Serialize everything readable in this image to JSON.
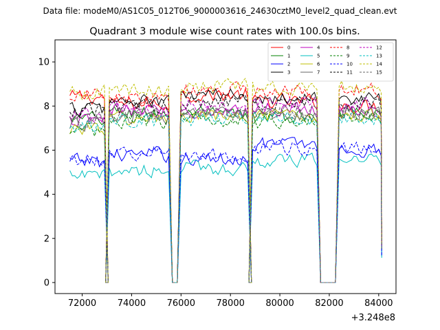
{
  "suptitle": "Data file: modeM0/AS1C05_012T06_9000003616_24630cztM0_level2_quad_clean.evt",
  "chart_data": {
    "type": "line",
    "title": "Quadrant 3 module wise count rates with 100.0s bins.",
    "xlabel": "",
    "ylabel": "",
    "x_offset_label": "+3.248e8",
    "xlim": [
      70900,
      84700
    ],
    "ylim": [
      -0.5,
      11
    ],
    "xticks": [
      72000,
      74000,
      76000,
      78000,
      80000,
      82000,
      84000
    ],
    "xtick_labels": [
      "72000",
      "74000",
      "76000",
      "78000",
      "80000",
      "82000",
      "84000"
    ],
    "yticks": [
      0,
      2,
      4,
      6,
      8,
      10
    ],
    "ytick_labels": [
      "0",
      "2",
      "4",
      "6",
      "8",
      "10"
    ],
    "legend_position": "top-right",
    "segments": [
      {
        "start": 71500,
        "end": 72900
      },
      {
        "start": 73100,
        "end": 75500
      },
      {
        "start": 76000,
        "end": 78700
      },
      {
        "start": 78900,
        "end": 81500
      },
      {
        "start": 82400,
        "end": 84100
      }
    ],
    "gap_value": 0,
    "series": [
      {
        "name": "0",
        "color": "#ff0000",
        "dash": "solid",
        "levels": [
          8.4,
          8.1,
          8.5,
          8.2,
          8.0
        ]
      },
      {
        "name": "1",
        "color": "#008000",
        "dash": "solid",
        "levels": [
          7.4,
          7.7,
          7.6,
          7.5,
          7.8
        ]
      },
      {
        "name": "2",
        "color": "#0000ff",
        "dash": "solid",
        "levels": [
          5.5,
          5.8,
          5.6,
          6.3,
          6.0
        ]
      },
      {
        "name": "3",
        "color": "#000000",
        "dash": "solid",
        "levels": [
          7.9,
          8.2,
          8.5,
          8.4,
          8.3
        ]
      },
      {
        "name": "4",
        "color": "#bf00bf",
        "dash": "solid",
        "levels": [
          7.3,
          7.8,
          7.8,
          7.9,
          7.8
        ]
      },
      {
        "name": "5",
        "color": "#00bfbf",
        "dash": "solid",
        "levels": [
          4.8,
          5.1,
          5.2,
          5.5,
          5.6
        ]
      },
      {
        "name": "6",
        "color": "#bfbf00",
        "dash": "solid",
        "levels": [
          7.0,
          7.4,
          7.5,
          7.5,
          7.6
        ]
      },
      {
        "name": "7",
        "color": "#666666",
        "dash": "solid",
        "levels": [
          7.2,
          7.5,
          7.6,
          7.6,
          7.7
        ]
      },
      {
        "name": "8",
        "color": "#ff0000",
        "dash": "dashed",
        "levels": [
          8.5,
          8.3,
          8.7,
          8.6,
          8.7
        ]
      },
      {
        "name": "9",
        "color": "#008000",
        "dash": "dashed",
        "levels": [
          6.9,
          7.3,
          7.4,
          7.3,
          7.5
        ]
      },
      {
        "name": "10",
        "color": "#0000ff",
        "dash": "dashed",
        "levels": [
          5.6,
          5.9,
          5.8,
          6.1,
          6.1
        ]
      },
      {
        "name": "11",
        "color": "#000000",
        "dash": "dashed",
        "levels": [
          7.8,
          8.0,
          8.2,
          8.2,
          8.1
        ]
      },
      {
        "name": "12",
        "color": "#bf00bf",
        "dash": "dashed",
        "levels": [
          7.5,
          7.9,
          8.0,
          8.1,
          8.0
        ]
      },
      {
        "name": "13",
        "color": "#00bfbf",
        "dash": "dashed",
        "levels": [
          7.0,
          7.3,
          7.4,
          7.4,
          7.5
        ]
      },
      {
        "name": "14",
        "color": "#bfbf00",
        "dash": "dashed",
        "levels": [
          8.6,
          8.7,
          8.9,
          8.8,
          8.9
        ]
      },
      {
        "name": "15",
        "color": "#666666",
        "dash": "dashed",
        "levels": [
          7.4,
          7.6,
          7.7,
          7.8,
          7.7
        ]
      }
    ]
  }
}
